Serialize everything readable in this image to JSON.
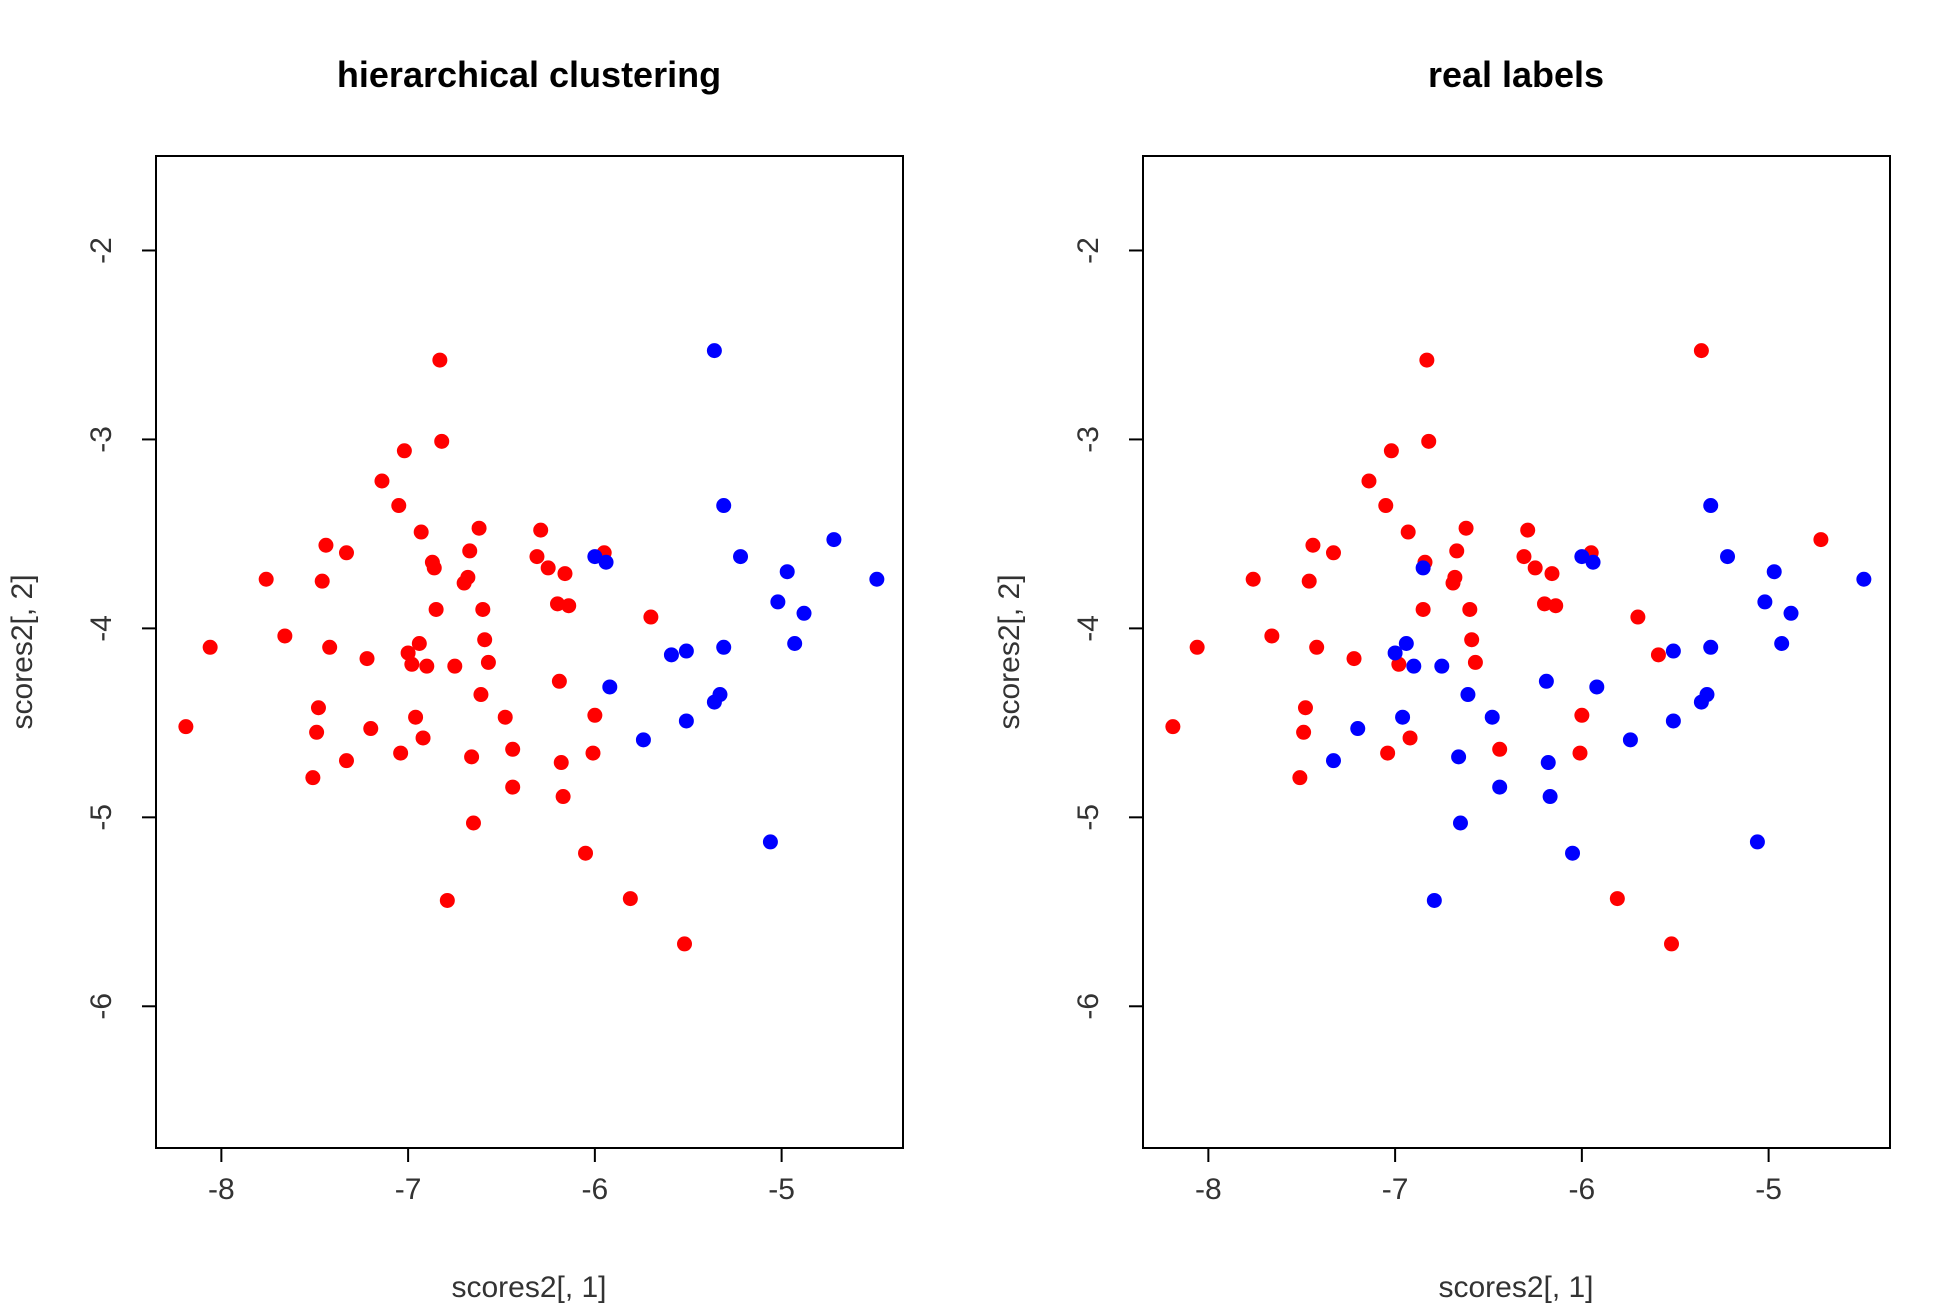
{
  "chart_data": [
    {
      "type": "scatter",
      "title": "hierarchical clustering",
      "xlabel": "scores2[, 1]",
      "ylabel": "scores2[, 2]",
      "xlim": [
        -8.35,
        -4.35
      ],
      "ylim": [
        -6.75,
        -1.5
      ],
      "xticks": [
        -8,
        -7,
        -6,
        -5
      ],
      "yticks": [
        -2,
        -3,
        -4,
        -5,
        -6
      ],
      "grid": false,
      "legend": "none",
      "series": [
        {
          "color": "#ff0000",
          "points": [
            [
              -8.19,
              -4.52
            ],
            [
              -8.06,
              -4.1
            ],
            [
              -7.76,
              -3.74
            ],
            [
              -7.66,
              -4.04
            ],
            [
              -7.51,
              -4.79
            ],
            [
              -7.49,
              -4.55
            ],
            [
              -7.48,
              -4.42
            ],
            [
              -7.46,
              -3.75
            ],
            [
              -7.44,
              -3.56
            ],
            [
              -7.42,
              -4.1
            ],
            [
              -7.33,
              -3.6
            ],
            [
              -7.33,
              -4.7
            ],
            [
              -7.22,
              -4.16
            ],
            [
              -7.2,
              -4.53
            ],
            [
              -7.14,
              -3.22
            ],
            [
              -7.05,
              -3.35
            ],
            [
              -7.04,
              -4.66
            ],
            [
              -7.02,
              -3.06
            ],
            [
              -7.0,
              -4.13
            ],
            [
              -6.98,
              -4.19
            ],
            [
              -6.96,
              -4.47
            ],
            [
              -6.94,
              -4.08
            ],
            [
              -6.93,
              -3.49
            ],
            [
              -6.92,
              -4.58
            ],
            [
              -6.9,
              -4.2
            ],
            [
              -6.87,
              -3.65
            ],
            [
              -6.86,
              -3.68
            ],
            [
              -6.85,
              -3.9
            ],
            [
              -6.83,
              -2.58
            ],
            [
              -6.82,
              -3.01
            ],
            [
              -6.79,
              -5.44
            ],
            [
              -6.75,
              -4.2
            ],
            [
              -6.7,
              -3.76
            ],
            [
              -6.68,
              -3.73
            ],
            [
              -6.67,
              -3.59
            ],
            [
              -6.66,
              -4.68
            ],
            [
              -6.65,
              -5.03
            ],
            [
              -6.62,
              -3.47
            ],
            [
              -6.61,
              -4.35
            ],
            [
              -6.6,
              -3.9
            ],
            [
              -6.59,
              -4.06
            ],
            [
              -6.57,
              -4.18
            ],
            [
              -6.48,
              -4.47
            ],
            [
              -6.44,
              -4.64
            ],
            [
              -6.44,
              -4.84
            ],
            [
              -6.31,
              -3.62
            ],
            [
              -6.29,
              -3.48
            ],
            [
              -6.25,
              -3.68
            ],
            [
              -6.2,
              -3.87
            ],
            [
              -6.19,
              -4.28
            ],
            [
              -6.18,
              -4.71
            ],
            [
              -6.17,
              -4.89
            ],
            [
              -6.16,
              -3.71
            ],
            [
              -6.14,
              -3.88
            ],
            [
              -6.05,
              -5.19
            ],
            [
              -6.01,
              -4.66
            ],
            [
              -6.0,
              -4.46
            ],
            [
              -5.95,
              -3.6
            ],
            [
              -5.81,
              -5.43
            ],
            [
              -5.7,
              -3.94
            ],
            [
              -5.52,
              -5.67
            ]
          ]
        },
        {
          "color": "#0000ff",
          "points": [
            [
              -6.0,
              -3.62
            ],
            [
              -5.94,
              -3.65
            ],
            [
              -5.92,
              -4.31
            ],
            [
              -5.74,
              -4.59
            ],
            [
              -5.59,
              -4.14
            ],
            [
              -5.51,
              -4.12
            ],
            [
              -5.51,
              -4.49
            ],
            [
              -5.36,
              -2.53
            ],
            [
              -5.36,
              -4.39
            ],
            [
              -5.33,
              -4.35
            ],
            [
              -5.31,
              -4.1
            ],
            [
              -5.31,
              -3.35
            ],
            [
              -5.22,
              -3.62
            ],
            [
              -5.06,
              -5.13
            ],
            [
              -5.02,
              -3.86
            ],
            [
              -4.97,
              -3.7
            ],
            [
              -4.93,
              -4.08
            ],
            [
              -4.88,
              -3.92
            ],
            [
              -4.72,
              -3.53
            ],
            [
              -4.49,
              -3.74
            ]
          ]
        }
      ]
    },
    {
      "type": "scatter",
      "title": "real labels",
      "xlabel": "scores2[, 1]",
      "ylabel": "scores2[, 2]",
      "xlim": [
        -8.35,
        -4.35
      ],
      "ylim": [
        -6.75,
        -1.5
      ],
      "xticks": [
        -8,
        -7,
        -6,
        -5
      ],
      "yticks": [
        -2,
        -3,
        -4,
        -5,
        -6
      ],
      "grid": false,
      "legend": "none",
      "series": [
        {
          "color": "#ff0000",
          "points": [
            [
              -8.19,
              -4.52
            ],
            [
              -8.06,
              -4.1
            ],
            [
              -7.76,
              -3.74
            ],
            [
              -7.66,
              -4.04
            ],
            [
              -7.51,
              -4.79
            ],
            [
              -7.49,
              -4.55
            ],
            [
              -7.48,
              -4.42
            ],
            [
              -7.46,
              -3.75
            ],
            [
              -7.44,
              -3.56
            ],
            [
              -7.42,
              -4.1
            ],
            [
              -7.33,
              -3.6
            ],
            [
              -7.22,
              -4.16
            ],
            [
              -7.14,
              -3.22
            ],
            [
              -7.05,
              -3.35
            ],
            [
              -7.04,
              -4.66
            ],
            [
              -7.02,
              -3.06
            ],
            [
              -6.98,
              -4.19
            ],
            [
              -6.93,
              -3.49
            ],
            [
              -6.92,
              -4.58
            ],
            [
              -6.85,
              -3.9
            ],
            [
              -6.84,
              -3.65
            ],
            [
              -6.83,
              -2.58
            ],
            [
              -6.82,
              -3.01
            ],
            [
              -6.69,
              -3.76
            ],
            [
              -6.68,
              -3.73
            ],
            [
              -6.67,
              -3.59
            ],
            [
              -6.62,
              -3.47
            ],
            [
              -6.6,
              -3.9
            ],
            [
              -6.59,
              -4.06
            ],
            [
              -6.57,
              -4.18
            ],
            [
              -6.44,
              -4.64
            ],
            [
              -6.31,
              -3.62
            ],
            [
              -6.29,
              -3.48
            ],
            [
              -6.25,
              -3.68
            ],
            [
              -6.2,
              -3.87
            ],
            [
              -6.16,
              -3.71
            ],
            [
              -6.14,
              -3.88
            ],
            [
              -6.01,
              -4.66
            ],
            [
              -6.0,
              -4.46
            ],
            [
              -5.95,
              -3.6
            ],
            [
              -5.81,
              -5.43
            ],
            [
              -5.7,
              -3.94
            ],
            [
              -5.59,
              -4.14
            ],
            [
              -5.52,
              -5.67
            ],
            [
              -5.36,
              -2.53
            ],
            [
              -4.72,
              -3.53
            ]
          ]
        },
        {
          "color": "#0000ff",
          "points": [
            [
              -7.33,
              -4.7
            ],
            [
              -7.2,
              -4.53
            ],
            [
              -7.0,
              -4.13
            ],
            [
              -6.96,
              -4.47
            ],
            [
              -6.94,
              -4.08
            ],
            [
              -6.9,
              -4.2
            ],
            [
              -6.85,
              -3.68
            ],
            [
              -6.79,
              -5.44
            ],
            [
              -6.75,
              -4.2
            ],
            [
              -6.66,
              -4.68
            ],
            [
              -6.65,
              -5.03
            ],
            [
              -6.61,
              -4.35
            ],
            [
              -6.48,
              -4.47
            ],
            [
              -6.44,
              -4.84
            ],
            [
              -6.19,
              -4.28
            ],
            [
              -6.18,
              -4.71
            ],
            [
              -6.17,
              -4.89
            ],
            [
              -6.05,
              -5.19
            ],
            [
              -6.0,
              -3.62
            ],
            [
              -5.94,
              -3.65
            ],
            [
              -5.92,
              -4.31
            ],
            [
              -5.74,
              -4.59
            ],
            [
              -5.51,
              -4.12
            ],
            [
              -5.51,
              -4.49
            ],
            [
              -5.36,
              -4.39
            ],
            [
              -5.33,
              -4.35
            ],
            [
              -5.31,
              -4.1
            ],
            [
              -5.31,
              -3.35
            ],
            [
              -5.22,
              -3.62
            ],
            [
              -5.06,
              -5.13
            ],
            [
              -5.02,
              -3.86
            ],
            [
              -4.97,
              -3.7
            ],
            [
              -4.93,
              -4.08
            ],
            [
              -4.88,
              -3.92
            ],
            [
              -4.49,
              -3.74
            ]
          ]
        }
      ]
    }
  ]
}
